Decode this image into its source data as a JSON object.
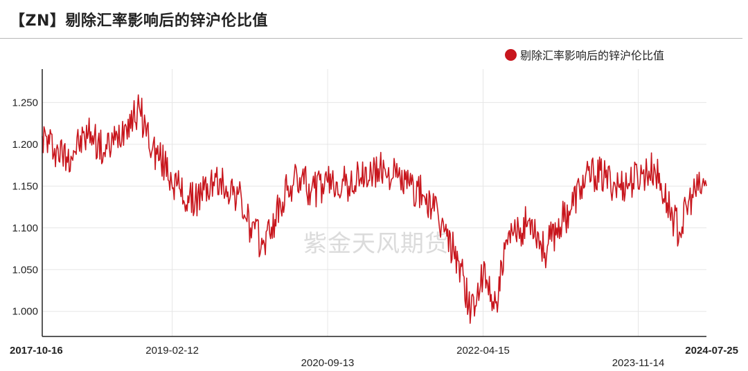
{
  "header": {
    "title": "【ZN】剔除汇率影响后的锌沪伦比值"
  },
  "watermark": "紫金天风期货",
  "colors": {
    "series": "#c8161d",
    "grid": "#e6e6e6",
    "axis": "#222222"
  },
  "chart_data": {
    "type": "line",
    "title": "【ZN】剔除汇率影响后的锌沪伦比值",
    "xlabel": "",
    "ylabel": "",
    "ylim": [
      0.97,
      1.29
    ],
    "grid": true,
    "legend_position": "top-right",
    "y_ticks": [
      "1.000",
      "1.050",
      "1.100",
      "1.150",
      "1.200",
      "1.250"
    ],
    "y_tick_values": [
      1.0,
      1.05,
      1.1,
      1.15,
      1.2,
      1.25
    ],
    "x_ticks": [
      "2017-10-16",
      "2019-02-12",
      "2020-09-13",
      "2022-04-15",
      "2023-11-14",
      "2024-07-25"
    ],
    "series": [
      {
        "name": "剔除汇率影响后的锌沪伦比值",
        "x": [
          "2017-10-16",
          "2017-12-01",
          "2018-01-15",
          "2018-03-01",
          "2018-04-15",
          "2018-06-01",
          "2018-07-15",
          "2018-09-01",
          "2018-10-15",
          "2018-12-01",
          "2019-01-15",
          "2019-03-01",
          "2019-04-15",
          "2019-06-01",
          "2019-07-15",
          "2019-09-01",
          "2019-10-15",
          "2019-12-01",
          "2020-01-15",
          "2020-03-01",
          "2020-04-15",
          "2020-06-01",
          "2020-07-15",
          "2020-09-01",
          "2020-10-15",
          "2020-12-01",
          "2021-01-15",
          "2021-03-01",
          "2021-04-15",
          "2021-06-01",
          "2021-07-15",
          "2021-09-01",
          "2021-10-15",
          "2021-12-01",
          "2022-01-15",
          "2022-03-01",
          "2022-04-15",
          "2022-06-01",
          "2022-07-15",
          "2022-09-01",
          "2022-10-15",
          "2022-12-01",
          "2023-01-15",
          "2023-03-01",
          "2023-04-15",
          "2023-06-01",
          "2023-07-15",
          "2023-09-01",
          "2023-10-15",
          "2023-12-01",
          "2024-01-15",
          "2024-03-01",
          "2024-04-15",
          "2024-06-01",
          "2024-07-25"
        ],
        "values": [
          1.21,
          1.195,
          1.185,
          1.2,
          1.215,
          1.19,
          1.205,
          1.23,
          1.24,
          1.195,
          1.175,
          1.15,
          1.13,
          1.14,
          1.155,
          1.15,
          1.14,
          1.1,
          1.08,
          1.11,
          1.145,
          1.16,
          1.145,
          1.15,
          1.155,
          1.15,
          1.16,
          1.165,
          1.17,
          1.16,
          1.15,
          1.14,
          1.12,
          1.09,
          1.06,
          1.0,
          1.04,
          1.01,
          1.08,
          1.1,
          1.11,
          1.07,
          1.1,
          1.12,
          1.15,
          1.165,
          1.16,
          1.15,
          1.155,
          1.165,
          1.17,
          1.13,
          1.095,
          1.14,
          1.15
        ]
      }
    ]
  }
}
